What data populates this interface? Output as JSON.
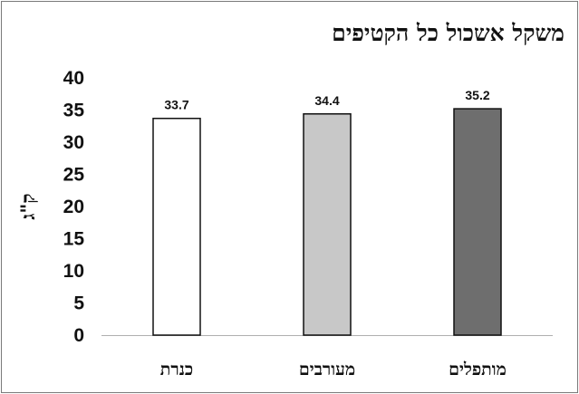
{
  "chart_data": {
    "type": "bar",
    "title": "משקל אשכול כל הקטיפים",
    "xlabel": "",
    "ylabel": "ק\"ג",
    "categories": [
      "כנרת",
      "מעורבים",
      "מותפלים"
    ],
    "values": [
      33.7,
      34.4,
      35.2
    ],
    "data_labels": [
      "33.7",
      "34.4",
      "35.2"
    ],
    "yticks": [
      0,
      5,
      10,
      15,
      20,
      25,
      30,
      35,
      40
    ],
    "ylim": [
      0,
      40
    ],
    "grid": false,
    "legend": "none",
    "colors": [
      "#ffffff",
      "#c8c8c8",
      "#6e6e6e"
    ],
    "bar_stroke": "#111111"
  }
}
